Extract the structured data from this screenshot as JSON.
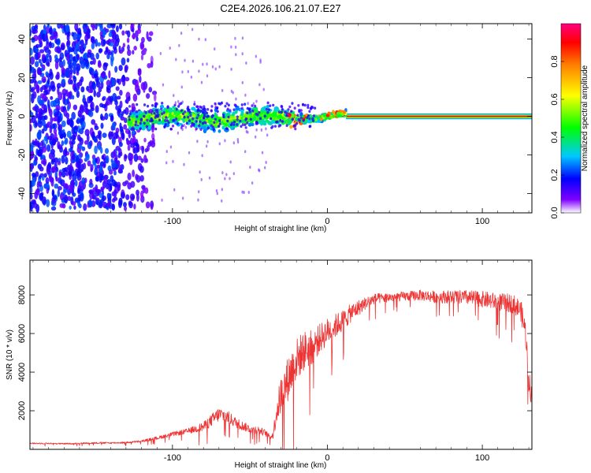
{
  "title": "C2E4.2026.106.21.07.E27",
  "chart_data": [
    {
      "type": "heatmap",
      "xlabel": "Height of straight line (km)",
      "ylabel": "Frequency (Hz)",
      "xlim": [
        -192,
        132
      ],
      "ylim": [
        -50,
        48
      ],
      "xticks": [
        -100,
        0,
        100
      ],
      "yticks": [
        -40,
        -20,
        0,
        20,
        40
      ],
      "colorbar": {
        "label": "Normalized spectral amplitude",
        "range": [
          0.0,
          1.0
        ],
        "ticks": [
          0.0,
          0.2,
          0.4,
          0.6,
          0.8
        ],
        "tick_labels": [
          "0.0",
          "0.2",
          "0.4",
          "0.6",
          "0.8"
        ],
        "colormap": "rainbow"
      },
      "carrier": {
        "frequency": 0.0,
        "start_km": 12,
        "end_km": 132,
        "amplitude": 0.9,
        "band_halfwidth_hz": 1.5
      },
      "regions": [
        {
          "name": "diffuse-scatter",
          "x_range": [
            -192,
            -108
          ],
          "freq_halfwidth": 48,
          "amplitude": [
            0.15,
            0.3
          ]
        },
        {
          "name": "scintillating-carrier",
          "x_range": [
            -128,
            12
          ],
          "freq_halfwidth": 4,
          "amplitude": [
            0.2,
            0.55
          ]
        }
      ]
    },
    {
      "type": "line",
      "xlabel": "Height of straight line (km)",
      "ylabel": "SNR (10 * v/v)",
      "xlim": [
        -192,
        132
      ],
      "ylim": [
        0,
        9800
      ],
      "xticks": [
        -100,
        0,
        100
      ],
      "yticks": [
        2000,
        4000,
        6000,
        8000
      ],
      "series": [
        {
          "name": "SNR",
          "color": "#ee3333",
          "x": [
            -192,
            -180,
            -170,
            -160,
            -150,
            -140,
            -130,
            -120,
            -110,
            -100,
            -90,
            -80,
            -75,
            -70,
            -65,
            -60,
            -55,
            -50,
            -45,
            -40,
            -37,
            -35,
            -33,
            -30,
            -25,
            -20,
            -15,
            -10,
            -5,
            0,
            5,
            10,
            15,
            20,
            25,
            30,
            40,
            50,
            60,
            70,
            80,
            90,
            100,
            110,
            120,
            125,
            128,
            130,
            132
          ],
          "y": [
            300,
            300,
            280,
            300,
            320,
            320,
            340,
            400,
            560,
            750,
            900,
            1100,
            1400,
            1700,
            1600,
            1350,
            1150,
            1000,
            950,
            800,
            600,
            700,
            1700,
            2500,
            3400,
            4300,
            4800,
            5000,
            5500,
            5900,
            6200,
            6500,
            6900,
            7200,
            7500,
            7700,
            7800,
            7850,
            7900,
            7800,
            7800,
            7750,
            7650,
            7500,
            7400,
            7000,
            5800,
            3400,
            2500
          ],
          "noise": [
            50,
            50,
            50,
            50,
            60,
            60,
            60,
            80,
            120,
            160,
            200,
            350,
            450,
            550,
            500,
            400,
            350,
            300,
            300,
            250,
            150,
            300,
            1000,
            1400,
            1700,
            1600,
            1500,
            1300,
            1100,
            1000,
            900,
            800,
            700,
            600,
            450,
            400,
            350,
            350,
            400,
            450,
            500,
            550,
            600,
            650,
            700,
            800,
            1000,
            900,
            700
          ]
        }
      ]
    }
  ]
}
